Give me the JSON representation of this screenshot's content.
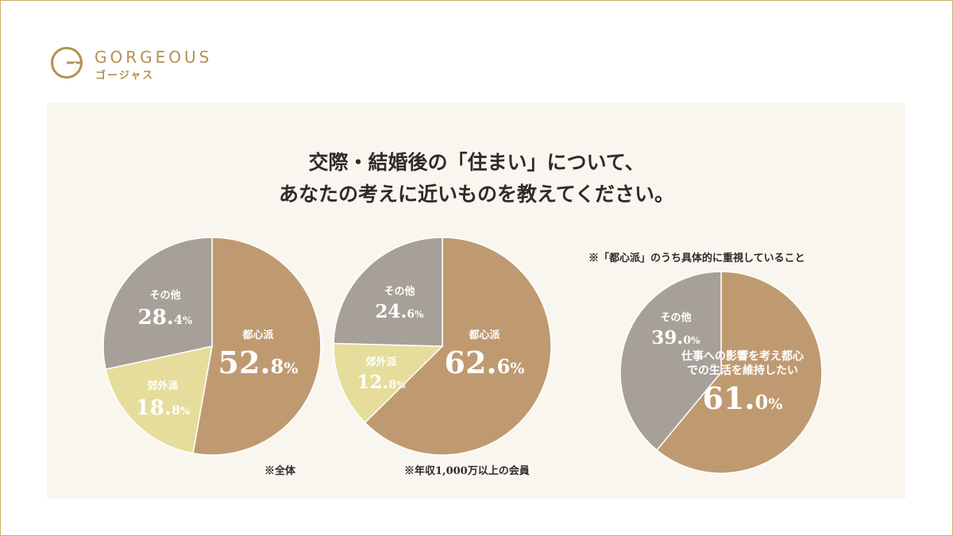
{
  "brand": {
    "name": "GORGEOUS",
    "kana": "ゴージャス"
  },
  "question": {
    "line1": "交際・結婚後の「住まい」について、",
    "line2": "あなたの考えに近いものを教えてください。"
  },
  "notes": {
    "chart3_header": "※「都心派」のうち具体的に重視していること"
  },
  "colors": {
    "urban": "#bf9a71",
    "other": "#a7a098",
    "suburban": "#e6dd9c",
    "frame": "#cdb16b",
    "brand": "#b39250",
    "panel": "#f8f6ef"
  },
  "chart_data": [
    {
      "type": "pie",
      "caption": "※全体",
      "slices": [
        {
          "label": "都心派",
          "value": 52.8,
          "color": "#bf9a71"
        },
        {
          "label": "郊外派",
          "value": 18.8,
          "color": "#e6dd9c"
        },
        {
          "label": "その他",
          "value": 28.4,
          "color": "#a7a098"
        }
      ]
    },
    {
      "type": "pie",
      "caption": "※年収1,000万以上の会員",
      "slices": [
        {
          "label": "都心派",
          "value": 62.6,
          "color": "#bf9a71"
        },
        {
          "label": "郊外派",
          "value": 12.8,
          "color": "#e6dd9c"
        },
        {
          "label": "その他",
          "value": 24.6,
          "color": "#a7a098"
        }
      ]
    },
    {
      "type": "pie",
      "caption": "",
      "slices": [
        {
          "label": "仕事への影響を考え都心での生活を維持したい",
          "label_lines": [
            "仕事への影響を考え都心",
            "での生活を維持したい"
          ],
          "value": 61.0,
          "color": "#bf9a71"
        },
        {
          "label": "その他",
          "value": 39.0,
          "color": "#a7a098"
        }
      ]
    }
  ]
}
